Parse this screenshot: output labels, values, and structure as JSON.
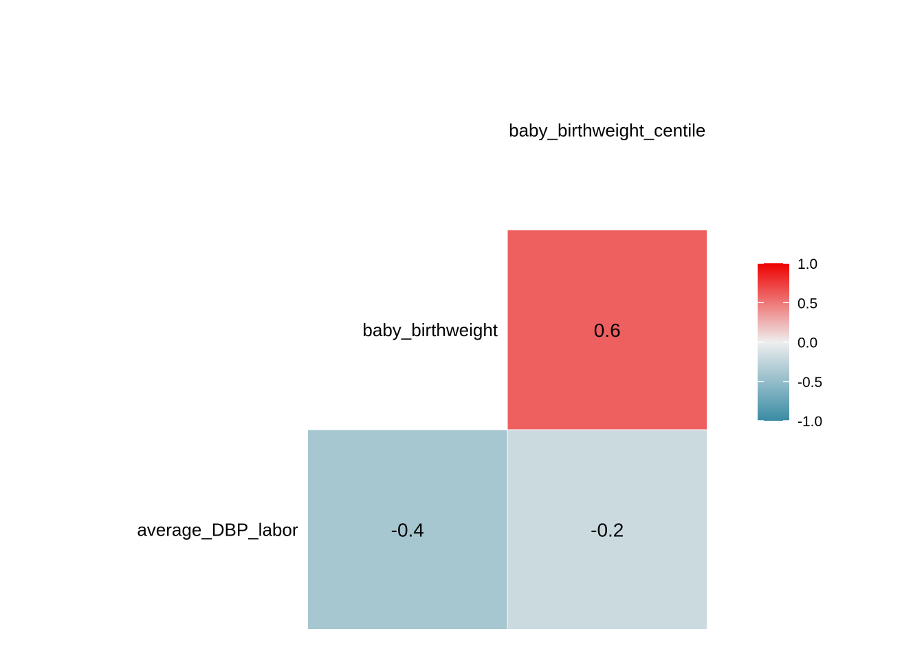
{
  "chart_data": {
    "type": "heatmap",
    "variables": [
      "average_DBP_labor",
      "baby_birthweight",
      "baby_birthweight_centile"
    ],
    "cells": [
      {
        "row": "baby_birthweight",
        "col": "baby_birthweight_centile",
        "value": 0.6,
        "label": "0.6"
      },
      {
        "row": "average_DBP_labor",
        "col": "baby_birthweight",
        "value": -0.4,
        "label": "-0.4"
      },
      {
        "row": "average_DBP_labor",
        "col": "baby_birthweight_centile",
        "value": -0.2,
        "label": "-0.2"
      }
    ],
    "color_scale": {
      "low": "#3A8BA4",
      "mid": "#EEEEEE",
      "high": "#EE0000",
      "limits": [
        -1.0,
        1.0
      ]
    },
    "legend": {
      "position": "right",
      "ticks": [
        1.0,
        0.5,
        0.0,
        -0.5,
        -1.0
      ],
      "tick_labels": [
        "1.0",
        "0.5",
        "0.0",
        "-0.5",
        "-1.0"
      ]
    },
    "title": "",
    "xlabel": "",
    "ylabel": ""
  }
}
